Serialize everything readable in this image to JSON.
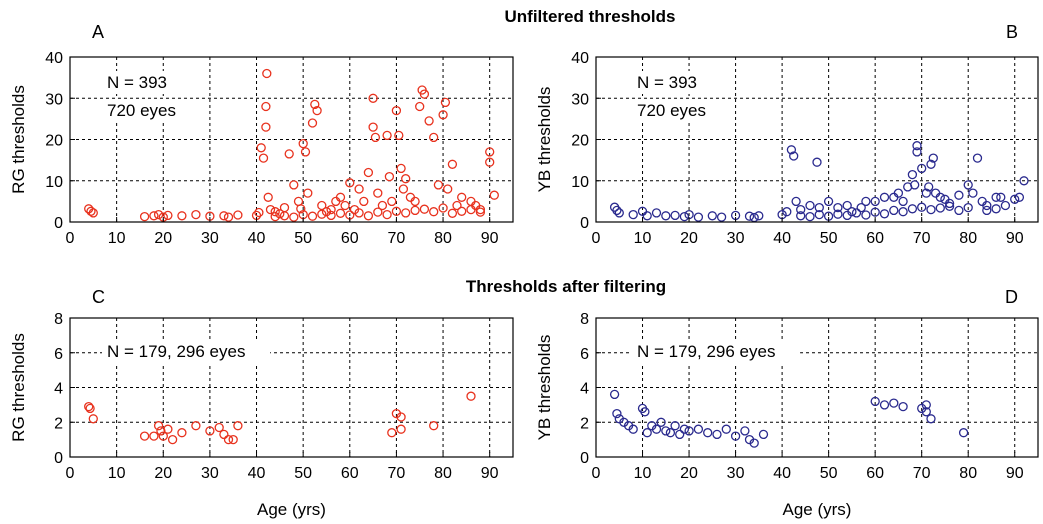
{
  "titles": {
    "top": "Unfiltered thresholds",
    "bottom": "Thresholds after filtering"
  },
  "chart_data": [
    {
      "panel": "A",
      "type": "scatter",
      "xlabel": "",
      "ylabel": "RG thresholds",
      "xlim": [
        0,
        95
      ],
      "ylim": [
        0,
        40
      ],
      "xticks": [
        "0",
        "10",
        "20",
        "30",
        "40",
        "50",
        "60",
        "70",
        "80",
        "90"
      ],
      "yticks": [
        "0",
        "10",
        "20",
        "30",
        "40"
      ],
      "annotations": [
        "N = 393",
        "720 eyes"
      ],
      "color": "#e8321e",
      "grid": true,
      "points": [
        [
          4,
          3.2
        ],
        [
          4.5,
          2.6
        ],
        [
          5,
          2.2
        ],
        [
          16,
          1.3
        ],
        [
          18,
          1.5
        ],
        [
          19,
          1.8
        ],
        [
          20,
          1.2
        ],
        [
          21,
          1.6
        ],
        [
          24,
          1.5
        ],
        [
          27,
          1.8
        ],
        [
          30,
          1.4
        ],
        [
          33,
          1.5
        ],
        [
          34,
          1.2
        ],
        [
          36,
          1.7
        ],
        [
          40,
          1.6
        ],
        [
          40.5,
          2.3
        ],
        [
          41,
          18
        ],
        [
          41.5,
          15.5
        ],
        [
          42,
          28
        ],
        [
          42,
          23
        ],
        [
          42.2,
          36
        ],
        [
          42.5,
          6
        ],
        [
          43,
          3
        ],
        [
          44,
          2.5
        ],
        [
          45,
          2
        ],
        [
          46,
          3.5
        ],
        [
          47,
          16.5
        ],
        [
          48,
          9
        ],
        [
          49,
          5
        ],
        [
          49.5,
          3.2
        ],
        [
          50,
          19
        ],
        [
          50.5,
          17
        ],
        [
          51,
          7
        ],
        [
          52,
          24
        ],
        [
          52.5,
          28.5
        ],
        [
          53,
          27
        ],
        [
          54,
          4
        ],
        [
          55,
          2.5
        ],
        [
          56,
          3
        ],
        [
          57,
          5
        ],
        [
          58,
          6
        ],
        [
          59,
          4
        ],
        [
          60,
          9.5
        ],
        [
          61,
          3
        ],
        [
          62,
          8
        ],
        [
          63,
          5
        ],
        [
          64,
          12
        ],
        [
          65,
          30
        ],
        [
          65,
          23
        ],
        [
          65.5,
          20.5
        ],
        [
          66,
          7
        ],
        [
          67,
          4
        ],
        [
          68,
          21
        ],
        [
          68.5,
          11
        ],
        [
          69,
          5
        ],
        [
          70,
          27
        ],
        [
          70.5,
          21
        ],
        [
          71,
          13
        ],
        [
          71.5,
          8
        ],
        [
          72,
          10.5
        ],
        [
          73,
          6
        ],
        [
          74,
          5
        ],
        [
          75.5,
          32
        ],
        [
          75,
          28
        ],
        [
          76,
          31
        ],
        [
          77,
          24.5
        ],
        [
          78,
          20.5
        ],
        [
          79,
          9
        ],
        [
          80,
          26
        ],
        [
          80.5,
          29
        ],
        [
          81,
          8
        ],
        [
          82,
          14
        ],
        [
          83,
          4
        ],
        [
          84,
          6
        ],
        [
          86,
          5
        ],
        [
          87,
          4
        ],
        [
          88,
          3
        ],
        [
          90,
          17
        ],
        [
          90,
          14.5
        ],
        [
          91,
          6.5
        ],
        [
          44,
          1.3
        ],
        [
          46,
          1.5
        ],
        [
          48,
          1.2
        ],
        [
          50,
          1.8
        ],
        [
          52,
          1.4
        ],
        [
          54,
          1.9
        ],
        [
          56,
          1.6
        ],
        [
          58,
          2.1
        ],
        [
          60,
          1.7
        ],
        [
          62,
          2.2
        ],
        [
          64,
          1.5
        ],
        [
          66,
          2.4
        ],
        [
          68,
          1.8
        ],
        [
          70,
          2.6
        ],
        [
          72,
          2.2
        ],
        [
          74,
          2.8
        ],
        [
          76,
          3.1
        ],
        [
          78,
          2.5
        ],
        [
          80,
          3.4
        ],
        [
          82,
          2.1
        ],
        [
          84,
          2.6
        ],
        [
          86,
          3
        ],
        [
          88,
          2.4
        ]
      ]
    },
    {
      "panel": "B",
      "type": "scatter",
      "xlabel": "",
      "ylabel": "YB thresholds",
      "xlim": [
        0,
        95
      ],
      "ylim": [
        0,
        40
      ],
      "xticks": [
        "0",
        "10",
        "20",
        "30",
        "40",
        "50",
        "60",
        "70",
        "80",
        "90"
      ],
      "yticks": [
        "0",
        "10",
        "20",
        "30",
        "40"
      ],
      "annotations": [
        "N = 393",
        "720 eyes"
      ],
      "color": "#2a2a8e",
      "grid": true,
      "points": [
        [
          4,
          3.6
        ],
        [
          4.5,
          2.8
        ],
        [
          5,
          2.2
        ],
        [
          8,
          1.8
        ],
        [
          10,
          2.6
        ],
        [
          11,
          1.5
        ],
        [
          13,
          2.2
        ],
        [
          15,
          1.5
        ],
        [
          17,
          1.6
        ],
        [
          19,
          1.3
        ],
        [
          20,
          1.8
        ],
        [
          22,
          1.2
        ],
        [
          25,
          1.5
        ],
        [
          27,
          1.2
        ],
        [
          30,
          1.6
        ],
        [
          33,
          1.4
        ],
        [
          34,
          1.1
        ],
        [
          35,
          1.5
        ],
        [
          40,
          1.8
        ],
        [
          41,
          2.5
        ],
        [
          42,
          17.5
        ],
        [
          42.5,
          16
        ],
        [
          43,
          5
        ],
        [
          44,
          3
        ],
        [
          46,
          4
        ],
        [
          47.5,
          14.5
        ],
        [
          48,
          3.5
        ],
        [
          50,
          5
        ],
        [
          52,
          3.5
        ],
        [
          54,
          4
        ],
        [
          55,
          2.5
        ],
        [
          57,
          3.5
        ],
        [
          58,
          5
        ],
        [
          60,
          5
        ],
        [
          62,
          6
        ],
        [
          64,
          6
        ],
        [
          65,
          7
        ],
        [
          66,
          5
        ],
        [
          67,
          8.5
        ],
        [
          68,
          11.5
        ],
        [
          68.5,
          9
        ],
        [
          69,
          17
        ],
        [
          69,
          18.5
        ],
        [
          70,
          13
        ],
        [
          71,
          7
        ],
        [
          71.5,
          8.5
        ],
        [
          72,
          14
        ],
        [
          72.5,
          15.5
        ],
        [
          73,
          7
        ],
        [
          74,
          6
        ],
        [
          75,
          5.5
        ],
        [
          76,
          4.5
        ],
        [
          78,
          6.5
        ],
        [
          80,
          9
        ],
        [
          81,
          7
        ],
        [
          82,
          15.5
        ],
        [
          83,
          5
        ],
        [
          84,
          4
        ],
        [
          86,
          6
        ],
        [
          87,
          6
        ],
        [
          88,
          4
        ],
        [
          90,
          5.5
        ],
        [
          91,
          6
        ],
        [
          92,
          10
        ],
        [
          44,
          1.5
        ],
        [
          46,
          1.3
        ],
        [
          48,
          1.8
        ],
        [
          50,
          1.4
        ],
        [
          52,
          1.9
        ],
        [
          54,
          1.6
        ],
        [
          56,
          2.2
        ],
        [
          58,
          1.7
        ],
        [
          60,
          2.4
        ],
        [
          62,
          2
        ],
        [
          64,
          2.8
        ],
        [
          66,
          2.5
        ],
        [
          68,
          3.2
        ],
        [
          70,
          3.6
        ],
        [
          72,
          3
        ],
        [
          74,
          3.4
        ],
        [
          76,
          3.8
        ],
        [
          78,
          2.8
        ],
        [
          80,
          3.5
        ],
        [
          84,
          2.8
        ],
        [
          86,
          3.2
        ]
      ]
    },
    {
      "panel": "C",
      "type": "scatter",
      "xlabel": "Age (yrs)",
      "ylabel": "RG thresholds",
      "xlim": [
        0,
        95
      ],
      "ylim": [
        0,
        8
      ],
      "xticks": [
        "0",
        "10",
        "20",
        "30",
        "40",
        "50",
        "60",
        "70",
        "80",
        "90"
      ],
      "yticks": [
        "0",
        "2",
        "4",
        "6",
        "8"
      ],
      "annotations": [
        "N = 179, 296 eyes"
      ],
      "color": "#e8321e",
      "grid": true,
      "points": [
        [
          4,
          2.9
        ],
        [
          4.3,
          2.8
        ],
        [
          5,
          2.2
        ],
        [
          16,
          1.2
        ],
        [
          18,
          1.2
        ],
        [
          19,
          1.8
        ],
        [
          19.5,
          1.5
        ],
        [
          20,
          1.2
        ],
        [
          21,
          1.6
        ],
        [
          22,
          1.0
        ],
        [
          24,
          1.4
        ],
        [
          27,
          1.8
        ],
        [
          30,
          1.5
        ],
        [
          32,
          1.7
        ],
        [
          33,
          1.3
        ],
        [
          34,
          1.0
        ],
        [
          35,
          1.0
        ],
        [
          36,
          1.8
        ],
        [
          78,
          1.8
        ],
        [
          86,
          3.5
        ],
        [
          71,
          1.6
        ],
        [
          71,
          2.3
        ],
        [
          70,
          2.5
        ],
        [
          69,
          1.4
        ]
      ]
    },
    {
      "panel": "D",
      "type": "scatter",
      "xlabel": "Age (yrs)",
      "ylabel": "YB thresholds",
      "xlim": [
        0,
        95
      ],
      "ylim": [
        0,
        8
      ],
      "xticks": [
        "0",
        "10",
        "20",
        "30",
        "40",
        "50",
        "60",
        "70",
        "80",
        "90"
      ],
      "yticks": [
        "0",
        "2",
        "4",
        "6",
        "8"
      ],
      "annotations": [
        "N = 179, 296 eyes"
      ],
      "color": "#2a2a8e",
      "grid": true,
      "points": [
        [
          4,
          3.6
        ],
        [
          4.5,
          2.5
        ],
        [
          5,
          2.2
        ],
        [
          6,
          2.0
        ],
        [
          7,
          1.8
        ],
        [
          8,
          1.6
        ],
        [
          10,
          2.8
        ],
        [
          10.5,
          2.6
        ],
        [
          11,
          1.4
        ],
        [
          12,
          1.8
        ],
        [
          13,
          1.6
        ],
        [
          14,
          2.0
        ],
        [
          15,
          1.5
        ],
        [
          16,
          1.4
        ],
        [
          17,
          1.8
        ],
        [
          18,
          1.3
        ],
        [
          19,
          1.6
        ],
        [
          20,
          1.5
        ],
        [
          22,
          1.6
        ],
        [
          24,
          1.4
        ],
        [
          26,
          1.3
        ],
        [
          28,
          1.6
        ],
        [
          30,
          1.2
        ],
        [
          32,
          1.5
        ],
        [
          33,
          1.0
        ],
        [
          34,
          0.8
        ],
        [
          36,
          1.3
        ],
        [
          79,
          1.4
        ],
        [
          71,
          3.0
        ],
        [
          71,
          2.6
        ],
        [
          72,
          2.2
        ],
        [
          70,
          2.8
        ],
        [
          60,
          3.2
        ],
        [
          62,
          3.0
        ],
        [
          64,
          3.1
        ],
        [
          66,
          2.9
        ]
      ]
    }
  ]
}
